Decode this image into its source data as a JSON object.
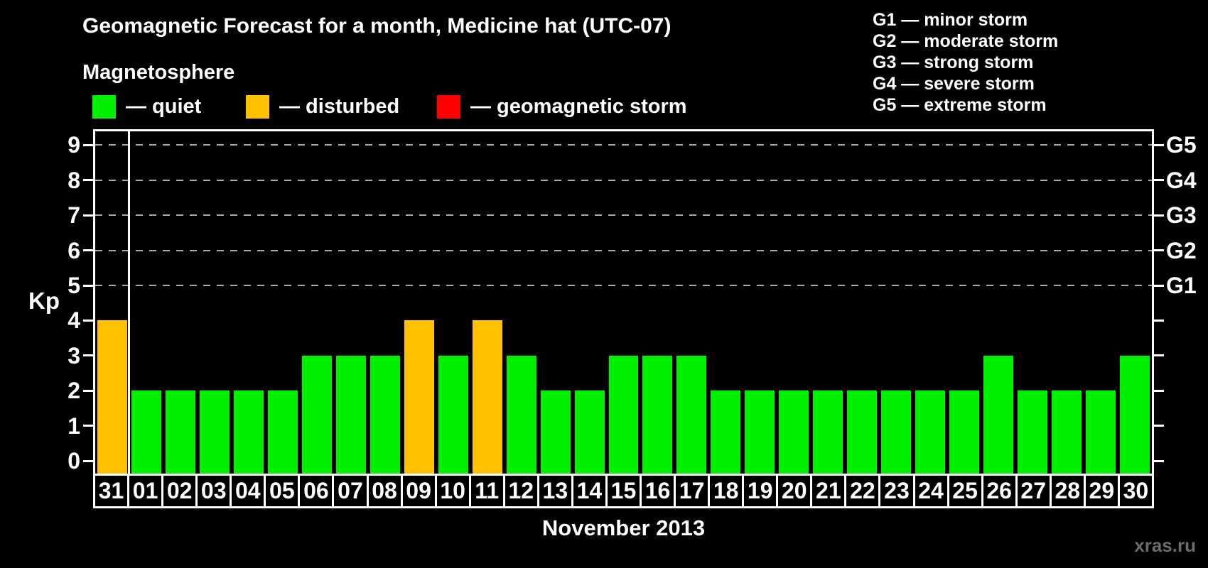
{
  "header": {
    "title": "Geomagnetic Forecast for a month, Medicine hat (UTC-07)",
    "subtitle": "Magnetosphere"
  },
  "legend": {
    "items": [
      {
        "name": "quiet",
        "color": "#00F000",
        "label": "— quiet"
      },
      {
        "name": "disturbed",
        "color": "#FFC000",
        "label": "— disturbed"
      },
      {
        "name": "geomagnetic-storm",
        "color": "#FF0000",
        "label": "— geomagnetic storm"
      }
    ]
  },
  "g_scale_legend": {
    "lines": [
      "G1 — minor storm",
      "G2 — moderate storm",
      "G3 — strong storm",
      "G4 — severe storm",
      "G5 — extreme storm"
    ]
  },
  "chart_data": {
    "type": "bar",
    "title": "Geomagnetic Forecast for a month, Medicine hat (UTC-07)",
    "categories": [
      "31",
      "01",
      "02",
      "03",
      "04",
      "05",
      "06",
      "07",
      "08",
      "09",
      "10",
      "11",
      "12",
      "13",
      "14",
      "15",
      "16",
      "17",
      "18",
      "19",
      "20",
      "21",
      "22",
      "23",
      "24",
      "25",
      "26",
      "27",
      "28",
      "29",
      "30"
    ],
    "values": [
      4,
      2,
      2,
      2,
      2,
      2,
      3,
      3,
      3,
      4,
      3,
      4,
      3,
      2,
      2,
      3,
      3,
      3,
      2,
      2,
      2,
      2,
      2,
      2,
      2,
      2,
      3,
      2,
      2,
      2,
      3
    ],
    "statuses": [
      "disturbed",
      "quiet",
      "quiet",
      "quiet",
      "quiet",
      "quiet",
      "quiet",
      "quiet",
      "quiet",
      "disturbed",
      "quiet",
      "disturbed",
      "quiet",
      "quiet",
      "quiet",
      "quiet",
      "quiet",
      "quiet",
      "quiet",
      "quiet",
      "quiet",
      "quiet",
      "quiet",
      "quiet",
      "quiet",
      "quiet",
      "quiet",
      "quiet",
      "quiet",
      "quiet",
      "quiet"
    ],
    "status_colors": {
      "quiet": "#00F000",
      "disturbed": "#FFC000",
      "storm": "#FF0000"
    },
    "ylabel": "Kp",
    "xlabel": "November 2013",
    "ylim": [
      0,
      9
    ],
    "yticks": [
      0,
      1,
      2,
      3,
      4,
      5,
      6,
      7,
      8,
      9
    ],
    "gridlines_at": [
      5,
      6,
      7,
      8,
      9
    ],
    "grid_style": "dashed",
    "right_axis_labels": {
      "5": "G1",
      "6": "G2",
      "7": "G3",
      "8": "G4",
      "9": "G5"
    },
    "separator_after_category": "31",
    "legend_position": "top"
  },
  "footer": {
    "month_label": "November 2013",
    "watermark": "xras.ru"
  }
}
